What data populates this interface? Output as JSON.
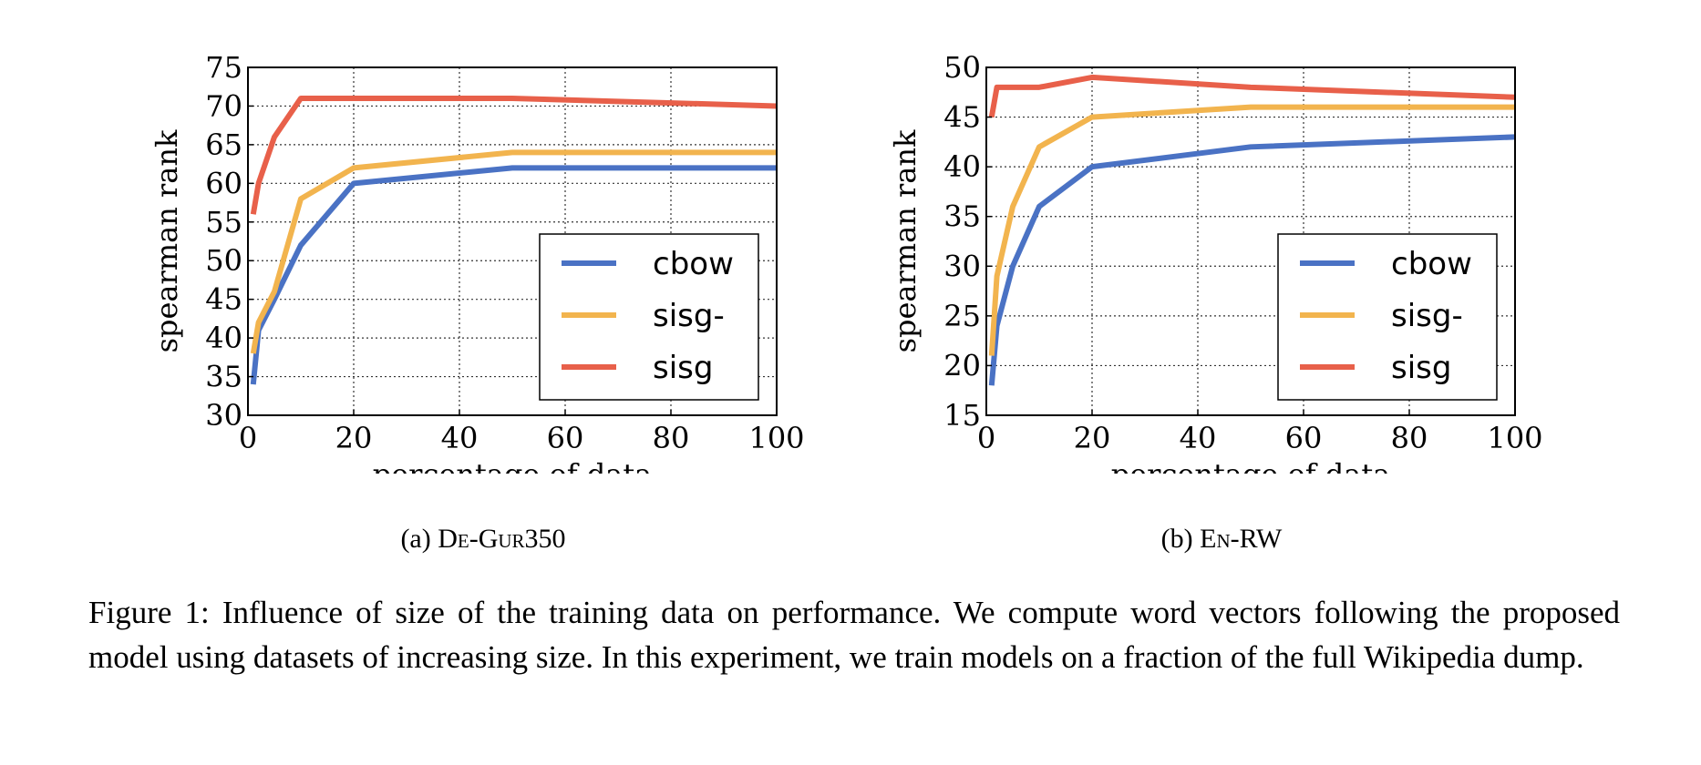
{
  "chart_data": [
    {
      "type": "line",
      "subcaption_prefix": "(a)",
      "subcaption_name": "De-Gur350",
      "xlabel": "percentage of data",
      "ylabel": "spearman rank",
      "xlim": [
        0,
        100
      ],
      "ylim": [
        30,
        75
      ],
      "xticks": [
        0,
        20,
        40,
        60,
        80,
        100
      ],
      "yticks": [
        30,
        35,
        40,
        45,
        50,
        55,
        60,
        65,
        70,
        75
      ],
      "grid": true,
      "legend_position": "bottom-right",
      "series": [
        {
          "name": "cbow",
          "color": "#4a72c4",
          "x": [
            1,
            2,
            5,
            10,
            20,
            50,
            100
          ],
          "y": [
            34,
            41,
            45,
            52,
            60,
            62,
            62
          ]
        },
        {
          "name": "sisg-",
          "color": "#f2b44e",
          "x": [
            1,
            2,
            5,
            10,
            20,
            50,
            100
          ],
          "y": [
            38,
            42,
            46,
            58,
            62,
            64,
            64
          ]
        },
        {
          "name": "sisg",
          "color": "#e8604a",
          "x": [
            1,
            2,
            5,
            10,
            20,
            50,
            100
          ],
          "y": [
            56,
            60,
            66,
            71,
            71,
            71,
            70
          ]
        }
      ]
    },
    {
      "type": "line",
      "subcaption_prefix": "(b)",
      "subcaption_name": "En-RW",
      "xlabel": "percentage of data",
      "ylabel": "spearman rank",
      "xlim": [
        0,
        100
      ],
      "ylim": [
        15,
        50
      ],
      "xticks": [
        0,
        20,
        40,
        60,
        80,
        100
      ],
      "yticks": [
        15,
        20,
        25,
        30,
        35,
        40,
        45,
        50
      ],
      "grid": true,
      "legend_position": "bottom-right",
      "series": [
        {
          "name": "cbow",
          "color": "#4a72c4",
          "x": [
            1,
            2,
            5,
            10,
            20,
            50,
            100
          ],
          "y": [
            18,
            24,
            30,
            36,
            40,
            42,
            43
          ]
        },
        {
          "name": "sisg-",
          "color": "#f2b44e",
          "x": [
            1,
            2,
            5,
            10,
            20,
            50,
            100
          ],
          "y": [
            21,
            29,
            36,
            42,
            45,
            46,
            46
          ]
        },
        {
          "name": "sisg",
          "color": "#e8604a",
          "x": [
            1,
            2,
            5,
            10,
            20,
            50,
            100
          ],
          "y": [
            45,
            48,
            48,
            48,
            49,
            48,
            47
          ]
        }
      ]
    }
  ],
  "caption": {
    "label": "Figure 1:",
    "text": "Influence of size of the training data on performance. We compute word vectors following the proposed model using datasets of increasing size. In this experiment, we train models on a fraction of the full Wikipedia dump."
  }
}
